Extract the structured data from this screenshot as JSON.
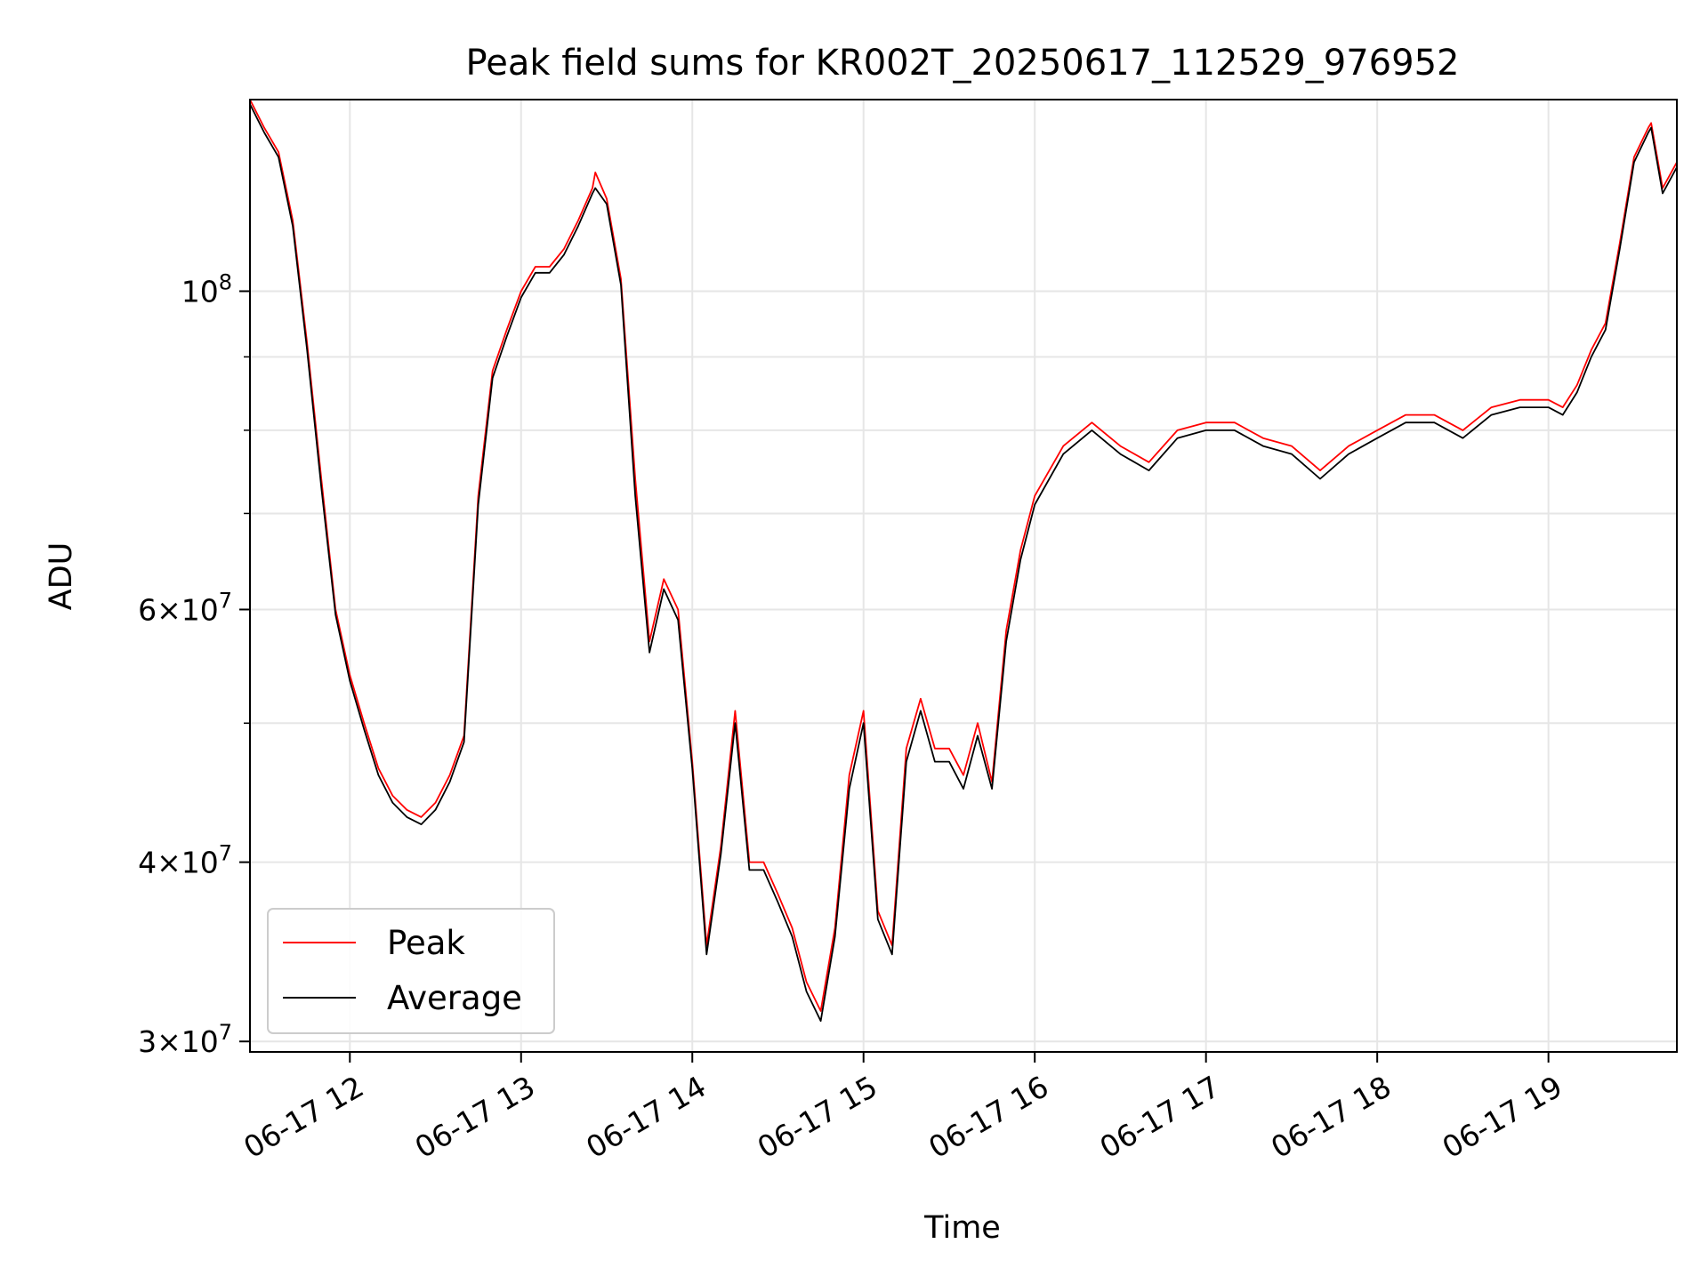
{
  "chart_data": {
    "type": "line",
    "title": "Peak field sums for KR002T_20250617_112529_976952",
    "xlabel": "Time",
    "ylabel": "ADU",
    "yscale": "log",
    "grid": true,
    "legend_position": "lower-left",
    "xlim": [
      "2025-06-17 11:25",
      "2025-06-17 19:45"
    ],
    "ylim": [
      29500000,
      136000000
    ],
    "x_ticks": [
      {
        "value": "2025-06-17 12:00",
        "label": "06-17 12"
      },
      {
        "value": "2025-06-17 13:00",
        "label": "06-17 13"
      },
      {
        "value": "2025-06-17 14:00",
        "label": "06-17 14"
      },
      {
        "value": "2025-06-17 15:00",
        "label": "06-17 15"
      },
      {
        "value": "2025-06-17 16:00",
        "label": "06-17 16"
      },
      {
        "value": "2025-06-17 17:00",
        "label": "06-17 17"
      },
      {
        "value": "2025-06-17 18:00",
        "label": "06-17 18"
      },
      {
        "value": "2025-06-17 19:00",
        "label": "06-17 19"
      }
    ],
    "y_ticks_major": [
      {
        "value": 30000000,
        "mantissa": "3",
        "exponent": "7"
      },
      {
        "value": 40000000,
        "mantissa": "4",
        "exponent": "7"
      },
      {
        "value": 60000000,
        "mantissa": "6",
        "exponent": "7"
      },
      {
        "value": 100000000,
        "mantissa": "",
        "exponent": "8"
      }
    ],
    "y_ticks_minor": [
      50000000,
      70000000,
      80000000,
      90000000
    ],
    "x": [
      "2025-06-17 11:25",
      "2025-06-17 11:30",
      "2025-06-17 11:35",
      "2025-06-17 11:40",
      "2025-06-17 11:45",
      "2025-06-17 11:50",
      "2025-06-17 11:55",
      "2025-06-17 12:00",
      "2025-06-17 12:05",
      "2025-06-17 12:10",
      "2025-06-17 12:15",
      "2025-06-17 12:20",
      "2025-06-17 12:25",
      "2025-06-17 12:30",
      "2025-06-17 12:35",
      "2025-06-17 12:40",
      "2025-06-17 12:45",
      "2025-06-17 12:50",
      "2025-06-17 12:55",
      "2025-06-17 13:00",
      "2025-06-17 13:05",
      "2025-06-17 13:10",
      "2025-06-17 13:15",
      "2025-06-17 13:20",
      "2025-06-17 13:25",
      "2025-06-17 13:26",
      "2025-06-17 13:30",
      "2025-06-17 13:35",
      "2025-06-17 13:40",
      "2025-06-17 13:45",
      "2025-06-17 13:50",
      "2025-06-17 13:55",
      "2025-06-17 14:00",
      "2025-06-17 14:05",
      "2025-06-17 14:10",
      "2025-06-17 14:15",
      "2025-06-17 14:20",
      "2025-06-17 14:25",
      "2025-06-17 14:30",
      "2025-06-17 14:35",
      "2025-06-17 14:40",
      "2025-06-17 14:45",
      "2025-06-17 14:50",
      "2025-06-17 14:55",
      "2025-06-17 15:00",
      "2025-06-17 15:05",
      "2025-06-17 15:10",
      "2025-06-17 15:15",
      "2025-06-17 15:20",
      "2025-06-17 15:25",
      "2025-06-17 15:30",
      "2025-06-17 15:35",
      "2025-06-17 15:40",
      "2025-06-17 15:45",
      "2025-06-17 15:50",
      "2025-06-17 15:55",
      "2025-06-17 16:00",
      "2025-06-17 16:10",
      "2025-06-17 16:20",
      "2025-06-17 16:30",
      "2025-06-17 16:40",
      "2025-06-17 16:50",
      "2025-06-17 17:00",
      "2025-06-17 17:10",
      "2025-06-17 17:20",
      "2025-06-17 17:30",
      "2025-06-17 17:40",
      "2025-06-17 17:50",
      "2025-06-17 18:00",
      "2025-06-17 18:10",
      "2025-06-17 18:20",
      "2025-06-17 18:30",
      "2025-06-17 18:40",
      "2025-06-17 18:50",
      "2025-06-17 19:00",
      "2025-06-17 19:05",
      "2025-06-17 19:10",
      "2025-06-17 19:15",
      "2025-06-17 19:20",
      "2025-06-17 19:25",
      "2025-06-17 19:30",
      "2025-06-17 19:35",
      "2025-06-17 19:36",
      "2025-06-17 19:40",
      "2025-06-17 19:45"
    ],
    "series": [
      {
        "name": "Peak",
        "color": "#ff0000",
        "values": [
          136000000,
          130000000,
          125000000,
          112000000,
          92000000,
          74000000,
          60000000,
          54000000,
          50000000,
          46500000,
          44500000,
          43500000,
          43000000,
          44000000,
          46000000,
          49000000,
          72000000,
          88000000,
          94000000,
          100000000,
          104000000,
          104000000,
          107000000,
          112000000,
          118000000,
          121000000,
          116000000,
          102000000,
          74000000,
          57000000,
          63000000,
          60000000,
          47000000,
          35000000,
          41000000,
          51000000,
          40000000,
          40000000,
          38000000,
          36000000,
          33000000,
          31500000,
          36000000,
          46000000,
          51000000,
          37000000,
          35000000,
          48000000,
          52000000,
          48000000,
          48000000,
          46000000,
          50000000,
          45500000,
          58000000,
          66000000,
          72000000,
          78000000,
          81000000,
          78000000,
          76000000,
          80000000,
          81000000,
          81000000,
          79000000,
          78000000,
          75000000,
          78000000,
          80000000,
          82000000,
          82000000,
          80000000,
          83000000,
          84000000,
          84000000,
          83000000,
          86000000,
          91000000,
          95000000,
          108000000,
          124000000,
          130000000,
          131000000,
          118000000,
          123000000
        ]
      },
      {
        "name": "Average",
        "color": "#000000",
        "values": [
          135000000,
          129000000,
          124000000,
          111000000,
          91000000,
          73000000,
          59500000,
          53500000,
          49500000,
          46000000,
          44000000,
          43000000,
          42500000,
          43500000,
          45500000,
          48500000,
          71000000,
          87000000,
          93000000,
          99000000,
          103000000,
          103000000,
          106000000,
          111000000,
          117000000,
          118000000,
          115000000,
          101000000,
          72000000,
          56000000,
          62000000,
          59000000,
          46500000,
          34500000,
          40500000,
          50000000,
          39500000,
          39500000,
          37500000,
          35500000,
          32500000,
          31000000,
          35500000,
          45000000,
          50000000,
          36500000,
          34500000,
          47000000,
          51000000,
          47000000,
          47000000,
          45000000,
          49000000,
          45000000,
          57000000,
          65000000,
          71000000,
          77000000,
          80000000,
          77000000,
          75000000,
          79000000,
          80000000,
          80000000,
          78000000,
          77000000,
          74000000,
          77000000,
          79000000,
          81000000,
          81000000,
          79000000,
          82000000,
          83000000,
          83000000,
          82000000,
          85000000,
          90000000,
          94000000,
          107000000,
          123000000,
          129000000,
          130000000,
          117000000,
          122000000
        ]
      }
    ]
  }
}
